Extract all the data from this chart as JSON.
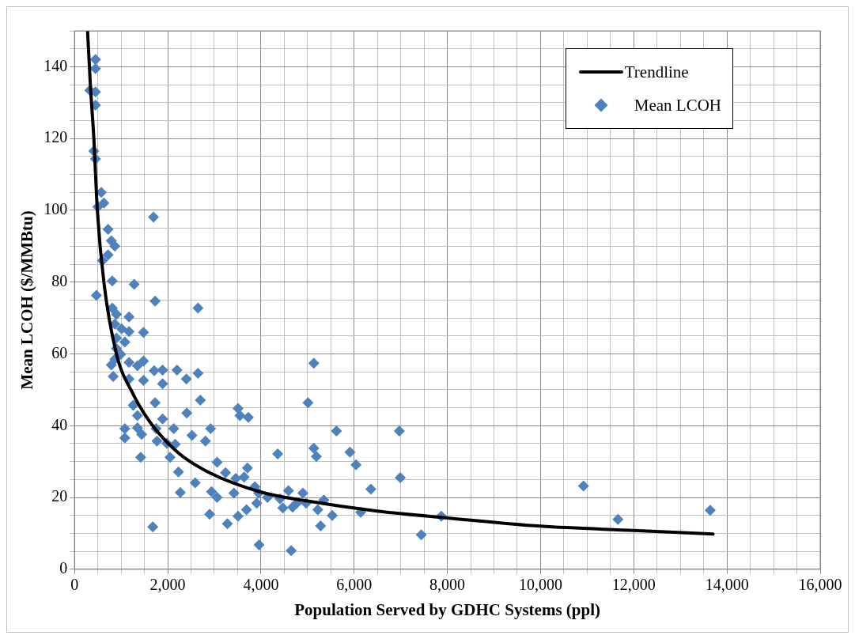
{
  "chart_data": {
    "type": "scatter",
    "xlabel": "Population Served by GDHC Systems (ppl)",
    "ylabel": "Mean LCOH ($/MMBtu)",
    "xlim": [
      0,
      16000
    ],
    "ylim": [
      0,
      150
    ],
    "xticks": [
      {
        "value": 0,
        "label": "0"
      },
      {
        "value": 500,
        "label": null
      },
      {
        "value": 1000,
        "label": null
      },
      {
        "value": 1500,
        "label": null
      },
      {
        "value": 2000,
        "label": "2,000"
      },
      {
        "value": 2500,
        "label": null
      },
      {
        "value": 3000,
        "label": null
      },
      {
        "value": 3500,
        "label": null
      },
      {
        "value": 4000,
        "label": "4,000"
      },
      {
        "value": 4500,
        "label": null
      },
      {
        "value": 5000,
        "label": null
      },
      {
        "value": 5500,
        "label": null
      },
      {
        "value": 6000,
        "label": "6,000"
      },
      {
        "value": 6500,
        "label": null
      },
      {
        "value": 7000,
        "label": null
      },
      {
        "value": 7500,
        "label": null
      },
      {
        "value": 8000,
        "label": "8,000"
      },
      {
        "value": 8500,
        "label": null
      },
      {
        "value": 9000,
        "label": null
      },
      {
        "value": 9500,
        "label": null
      },
      {
        "value": 10000,
        "label": "10,000"
      },
      {
        "value": 10500,
        "label": null
      },
      {
        "value": 11000,
        "label": null
      },
      {
        "value": 11500,
        "label": null
      },
      {
        "value": 12000,
        "label": "12,000"
      },
      {
        "value": 12500,
        "label": null
      },
      {
        "value": 13000,
        "label": null
      },
      {
        "value": 13500,
        "label": null
      },
      {
        "value": 14000,
        "label": "14,000"
      },
      {
        "value": 14500,
        "label": null
      },
      {
        "value": 15000,
        "label": null
      },
      {
        "value": 15500,
        "label": null
      },
      {
        "value": 16000,
        "label": "16,000"
      }
    ],
    "yticks": [
      0,
      {
        "value": 5,
        "label": null
      },
      {
        "value": 10,
        "label": null
      },
      {
        "value": 15,
        "label": null
      },
      20,
      {
        "value": 25,
        "label": null
      },
      {
        "value": 30,
        "label": null
      },
      {
        "value": 35,
        "label": null
      },
      40,
      {
        "value": 45,
        "label": null
      },
      {
        "value": 50,
        "label": null
      },
      {
        "value": 55,
        "label": null
      },
      60,
      {
        "value": 65,
        "label": null
      },
      {
        "value": 70,
        "label": null
      },
      {
        "value": 75,
        "label": null
      },
      80,
      {
        "value": 85,
        "label": null
      },
      {
        "value": 90,
        "label": null
      },
      {
        "value": 95,
        "label": null
      },
      100,
      {
        "value": 105,
        "label": null
      },
      {
        "value": 110,
        "label": null
      },
      {
        "value": 115,
        "label": null
      },
      120,
      {
        "value": 125,
        "label": null
      },
      {
        "value": 130,
        "label": null
      },
      {
        "value": 135,
        "label": null
      },
      140,
      {
        "value": 145,
        "label": null
      },
      {
        "value": 150,
        "label": null
      }
    ],
    "grid": true,
    "legend": "top right",
    "series": [
      {
        "name": "Trendline",
        "type": "line",
        "color": "#000000",
        "marker": "none",
        "line_style": "solid",
        "x": [
          280,
          340,
          415,
          490,
          630,
          900,
          1250,
          1620,
          2220,
          2880,
          4000,
          5000,
          6490,
          8000,
          10000,
          12000,
          13700
        ],
        "values": [
          150,
          135,
          120,
          100,
          80,
          60,
          49,
          41,
          32.5,
          27,
          21.5,
          19,
          16.2,
          14.3,
          12,
          10.8,
          9.8
        ]
      },
      {
        "name": "Mean LCOH",
        "color": "#4f81bd",
        "marker": "diamond",
        "x": [
          450,
          450,
          330,
          450,
          450,
          415,
          450,
          575,
          630,
          500,
          720,
          600,
          790,
          865,
          720,
          1695,
          470,
          810,
          1280,
          1730,
          2650,
          810,
          900,
          1170,
          865,
          1010,
          1480,
          1170,
          900,
          1080,
          900,
          990,
          865,
          790,
          1170,
          1480,
          1350,
          1890,
          1710,
          2200,
          2650,
          2400,
          830,
          1170,
          1480,
          1890,
          5135,
          1730,
          2700,
          1260,
          1350,
          1890,
          2410,
          3510,
          3550,
          3730,
          5010,
          1350,
          1080,
          1750,
          2130,
          2920,
          1440,
          1080,
          1770,
          1980,
          2160,
          2520,
          2810,
          5135,
          5190,
          1420,
          2050,
          4360,
          5620,
          6970,
          5910,
          6040,
          3060,
          3240,
          2230,
          2590,
          3460,
          3710,
          3640,
          6990,
          6360,
          10920,
          2270,
          2940,
          3060,
          3420,
          3870,
          3950,
          4140,
          4410,
          4590,
          4900,
          4770,
          4970,
          5350,
          5530,
          6140,
          7870,
          11660,
          13640,
          5280,
          7440,
          2900,
          3280,
          3510,
          3690,
          3910,
          3960,
          4650,
          1680,
          5220,
          4680,
          4470
        ],
        "values": [
          142,
          139.5,
          133.4,
          133,
          129.3,
          116.5,
          114.3,
          105,
          102,
          101,
          94.7,
          86,
          91.5,
          90,
          87.6,
          98.1,
          76.3,
          80.3,
          79.4,
          74.7,
          72.8,
          72.8,
          71,
          70.3,
          68.3,
          67,
          66,
          66.2,
          64.4,
          63.3,
          61.5,
          59.9,
          58.5,
          56.9,
          57.6,
          58,
          56.7,
          55.5,
          55.3,
          55.5,
          54.6,
          53,
          53.7,
          53,
          52.6,
          51.7,
          57.4,
          46.4,
          47.1,
          45.7,
          42.8,
          41.9,
          43.5,
          44.8,
          42.8,
          42.3,
          46.4,
          39.4,
          39.2,
          39.2,
          39.2,
          39.2,
          37.6,
          36.6,
          35.7,
          35.1,
          34.8,
          37.3,
          35.7,
          33.7,
          31.4,
          31.2,
          31.2,
          32.1,
          38.5,
          38.5,
          32.6,
          29.1,
          29.8,
          26.9,
          27.1,
          24.1,
          25.3,
          28.2,
          25.7,
          25.5,
          22.3,
          23.2,
          21.4,
          21.6,
          20,
          21.2,
          23,
          21.2,
          20,
          19.6,
          21.9,
          21.2,
          18.4,
          18.4,
          19.3,
          15,
          15.9,
          14.8,
          13.9,
          16.4,
          12.1,
          9.6,
          15.3,
          12.7,
          14.8,
          16.6,
          18.4,
          6.8,
          5.2,
          11.8,
          16.6,
          17.3,
          17.1
        ]
      }
    ]
  }
}
